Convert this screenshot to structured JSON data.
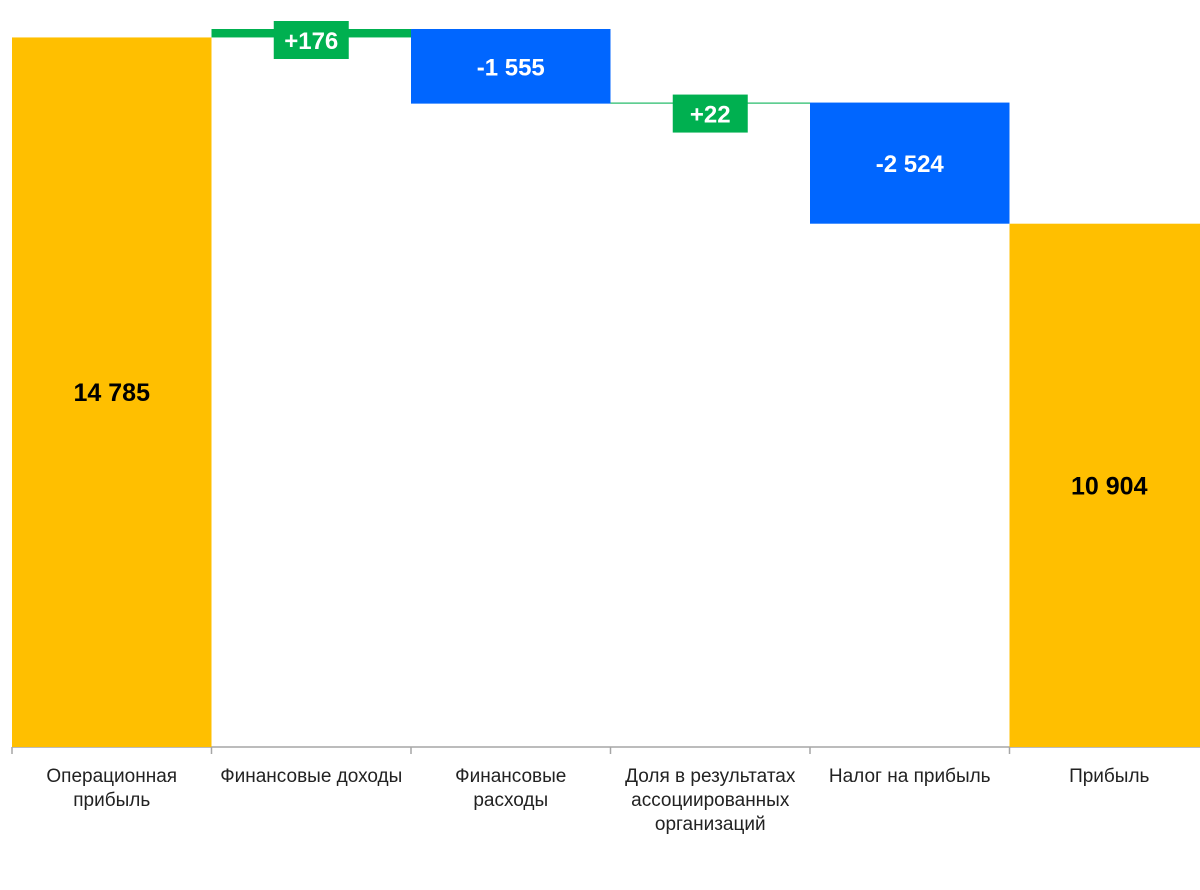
{
  "chart_data": {
    "type": "waterfall",
    "categories": [
      "Операционная прибыль",
      "Финансовые доходы",
      "Финансовые расходы",
      "Доля в результатах ассоциированных организаций",
      "Налог на прибыль",
      "Прибыль"
    ],
    "values": [
      14785,
      176,
      -1555,
      22,
      -2524,
      10904
    ],
    "kinds": [
      "total",
      "increase",
      "decrease",
      "increase",
      "decrease",
      "total"
    ],
    "data_labels": [
      "14 785",
      "+176",
      "-1 555",
      "+22",
      "-2 524",
      "10 904"
    ],
    "title": "",
    "xlabel": "",
    "ylabel": "",
    "grid": false,
    "legend": "none"
  },
  "colors": {
    "total": "#FFBF00",
    "increase": "#00B050",
    "decrease": "#0066FF",
    "connector": "#00B050",
    "axis": "#A6A6A6",
    "label_dark": "#000000",
    "label_light": "#FFFFFF"
  }
}
